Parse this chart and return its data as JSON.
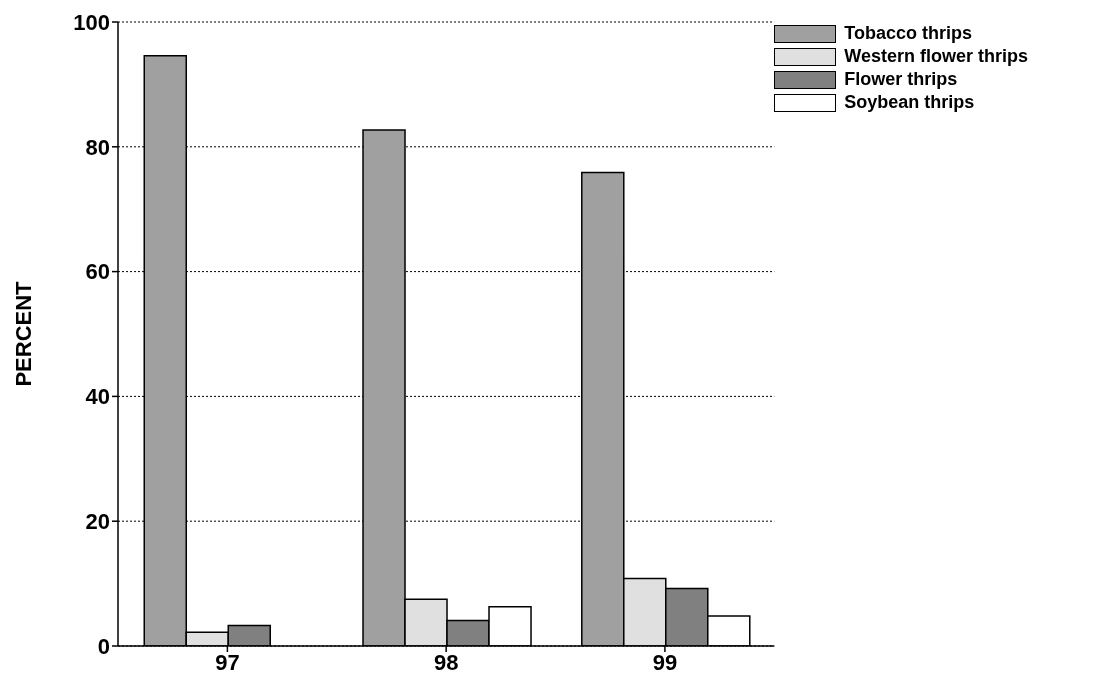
{
  "chart_data": {
    "type": "bar",
    "ylabel": "PERCENT",
    "categories": [
      "97",
      "98",
      "99"
    ],
    "series": [
      {
        "name": "Tobacco thrips",
        "color": "#a0a0a0",
        "values": [
          94.6,
          82.7,
          75.9
        ]
      },
      {
        "name": "Western flower thrips",
        "color": "#e0e0e0",
        "values": [
          2.2,
          7.5,
          10.8
        ]
      },
      {
        "name": "Flower thrips",
        "color": "#808080",
        "values": [
          3.3,
          4.1,
          9.2
        ]
      },
      {
        "name": "Soybean thrips",
        "color": "#ffffff",
        "values": [
          0,
          6.3,
          4.8
        ]
      }
    ],
    "ylim": [
      0,
      100
    ],
    "yticks": [
      0,
      20,
      40,
      60,
      80,
      100
    ],
    "grid": "y",
    "legend": "top right"
  }
}
